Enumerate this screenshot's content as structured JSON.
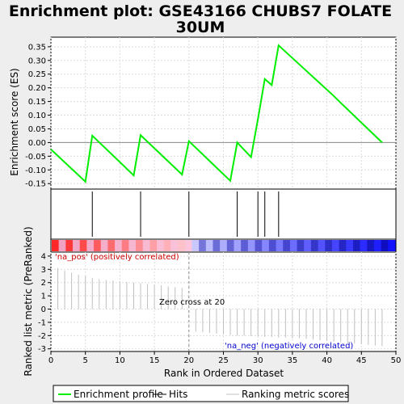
{
  "chart_data": {
    "type": "line",
    "title_line1": "Enrichment plot: GSE43166 CHUBS7 FOLATE",
    "title_line2": "30UM",
    "es_panel": {
      "ylabel": "Enrichment score (ES)",
      "ylim": [
        -0.17,
        0.385
      ],
      "yticks": [
        -0.15,
        -0.1,
        -0.05,
        0.0,
        0.05,
        0.1,
        0.15,
        0.2,
        0.25,
        0.3,
        0.35
      ],
      "ytick_labels": [
        "-0.15",
        "-0.10",
        "-0.05",
        "0.00",
        "0.05",
        "0.10",
        "0.15",
        "0.20",
        "0.25",
        "0.30",
        "0.35"
      ],
      "series": [
        {
          "name": "Enrichment profile",
          "color": "#00ee00",
          "x": [
            0,
            5,
            6,
            12,
            13,
            19,
            20,
            26,
            27,
            29,
            30,
            31,
            32,
            33,
            41,
            42,
            48
          ],
          "y": [
            -0.025,
            -0.143,
            0.025,
            -0.12,
            0.027,
            -0.117,
            0.005,
            -0.14,
            0.0,
            -0.053,
            0.085,
            0.232,
            0.21,
            0.355,
            0.17,
            0.145,
            0.0
          ]
        }
      ]
    },
    "hits": {
      "name": "Hits",
      "x": [
        6,
        13,
        20,
        27,
        30,
        31,
        33
      ]
    },
    "rank_panel": {
      "ylabel": "Ranked list metric (PreRanked)",
      "ylim": [
        -3.2,
        4.3
      ],
      "yticks": [
        -3,
        -2,
        -1,
        0,
        1,
        2,
        3,
        4
      ],
      "ytick_labels": [
        "-3",
        "-2",
        "-1",
        "0",
        "1",
        "2",
        "3",
        "4"
      ],
      "xlabel": "Rank in Ordered Dataset",
      "xlim": [
        0,
        50
      ],
      "xticks": [
        0,
        5,
        10,
        15,
        20,
        25,
        30,
        35,
        40,
        45,
        50
      ],
      "xtick_labels": [
        "0",
        "5",
        "10",
        "15",
        "20",
        "25",
        "30",
        "35",
        "40",
        "45",
        "50"
      ],
      "series": {
        "name": "Ranking metric scores",
        "color": "#c0c0c0",
        "x": [
          1,
          2,
          3,
          4,
          5,
          6,
          7,
          8,
          9,
          10,
          11,
          12,
          13,
          14,
          15,
          16,
          17,
          18,
          19,
          21,
          22,
          23,
          24,
          25,
          26,
          27,
          28,
          29,
          30,
          31,
          32,
          33,
          34,
          35,
          36,
          37,
          38,
          39,
          40,
          41,
          42,
          43,
          44,
          45,
          46,
          47,
          48
        ],
        "y": [
          3.1,
          2.9,
          2.75,
          2.6,
          2.5,
          2.35,
          2.25,
          2.2,
          2.15,
          2.1,
          2.05,
          2.0,
          1.95,
          1.9,
          1.85,
          1.8,
          1.7,
          1.65,
          1.6,
          -1.7,
          -1.75,
          -1.8,
          -1.85,
          -1.9,
          -1.95,
          -2.0,
          -2.0,
          -2.05,
          -2.05,
          -2.1,
          -2.1,
          -2.15,
          -2.15,
          -2.2,
          -2.2,
          -2.25,
          -2.3,
          -2.35,
          -2.4,
          -2.45,
          -2.5,
          -2.55,
          -2.6,
          -2.65,
          -2.7,
          -2.75,
          -2.8
        ]
      },
      "zero_cross": 20,
      "zero_cross_label": "Zero cross at 20",
      "pos_label": "'na_pos' (positively correlated)",
      "neg_label": "'na_neg' (negatively correlated)",
      "pos_color": "#cc0000",
      "neg_color": "#0000cc"
    },
    "legend": {
      "placement": "bottom",
      "items": [
        {
          "label": "Enrichment profile",
          "color": "#00ee00"
        },
        {
          "label": "Hits",
          "color": "#000000"
        },
        {
          "label": "Ranking metric scores",
          "color": "#c0c0c0"
        }
      ]
    }
  }
}
